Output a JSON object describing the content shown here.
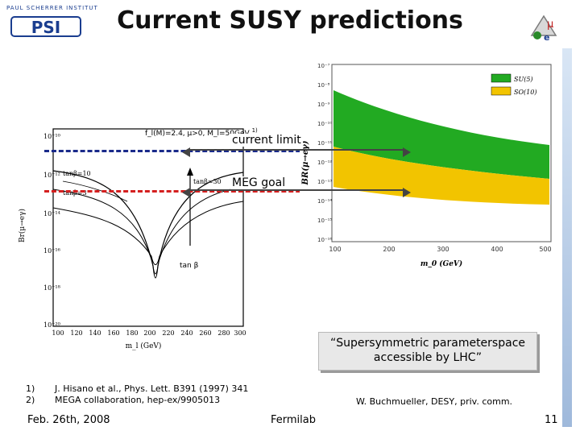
{
  "logo": {
    "top_text": "PAUL SCHERRER INSTITUT",
    "mark_text": "PSI"
  },
  "title": "Current SUSY predictions",
  "left_plot": {
    "params_label": "f_l(M)=2.4, μ>0, M_l=50GeV",
    "params_sup": "1)",
    "ylabel": "Br(μ→eγ)",
    "yticks": [
      "10⁻¹⁰",
      "10⁻¹²",
      "10⁻¹⁴",
      "10⁻¹⁶",
      "10⁻¹⁸",
      "10⁻²⁰"
    ],
    "xticks": [
      "100",
      "120",
      "140",
      "160",
      "180",
      "200",
      "220",
      "240",
      "260",
      "280",
      "300"
    ],
    "xlabel": "m_l (GeV)",
    "curve_labels": [
      "tanβ=10",
      "tanβ=3",
      "tanβ=30"
    ],
    "arrow_label": "tan β"
  },
  "annotations": {
    "current_limit": "current limit",
    "meg_goal": "MEG goal"
  },
  "right_plot": {
    "ylabel": "BR(μ→eγ)",
    "yticks": [
      "10⁻⁷",
      "10⁻⁸",
      "10⁻⁹",
      "10⁻¹⁰",
      "10⁻¹¹",
      "10⁻¹²",
      "10⁻¹³",
      "10⁻¹⁴",
      "10⁻¹⁵",
      "10⁻¹⁶"
    ],
    "xticks": [
      "100",
      "200",
      "300",
      "400",
      "500"
    ],
    "xlabel": "m_0 (GeV)",
    "legend": [
      {
        "label": "SU(5)",
        "color": "#22aa22"
      },
      {
        "label": "SO(10)",
        "color": "#f2c400"
      }
    ]
  },
  "callout": "“Supersymmetric parameterspace accessible by LHC”",
  "references": [
    {
      "num": "1)",
      "text": "J. Hisano et al., Phys. Lett. B391 (1997) 341"
    },
    {
      "num": "2)",
      "text": "MEGA collaboration, hep-ex/9905013"
    }
  ],
  "credit": "W. Buchmueller, DESY, priv. comm.",
  "footer": {
    "date": "Feb. 26th, 2008",
    "place": "Fermilab",
    "page": "11"
  },
  "colors": {
    "current_limit_line": "#1a2a8a",
    "meg_goal_line": "#d42020",
    "title": "#111111"
  }
}
